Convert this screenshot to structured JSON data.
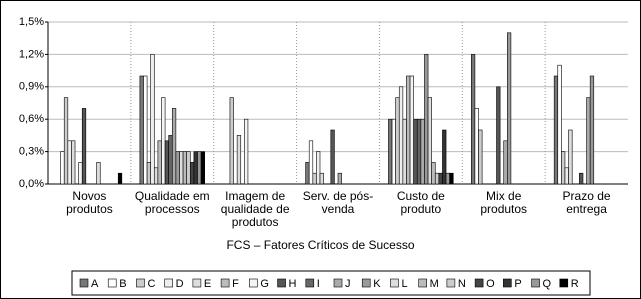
{
  "chart_data": {
    "type": "bar",
    "x_label": "FCS – Fatores Críticos de Sucesso",
    "categories": [
      "Novos produtos",
      "Qualidade em processos",
      "Imagem de qualidade de produtos",
      "Serv. de pós-venda",
      "Custo de produto",
      "Mix de produtos",
      "Prazo de entrega"
    ],
    "ylim": [
      0,
      1.5
    ],
    "yticks": [
      {
        "value": 0,
        "label": "0,0%"
      },
      {
        "value": 0.3,
        "label": "0,3%"
      },
      {
        "value": 0.6,
        "label": "0,6%"
      },
      {
        "value": 0.9,
        "label": "0,9%"
      },
      {
        "value": 1.2,
        "label": "1,2%"
      },
      {
        "value": 1.5,
        "label": "1,5%"
      }
    ],
    "grid": true,
    "legend": "bottom",
    "series": [
      {
        "name": "A",
        "color": "#777777",
        "values": [
          0,
          1.0,
          0,
          0.2,
          0.6,
          1.2,
          1.0
        ]
      },
      {
        "name": "B",
        "color": "#ffffff",
        "values": [
          0.3,
          1.0,
          0,
          0.4,
          0.6,
          0.7,
          1.1
        ]
      },
      {
        "name": "C",
        "color": "#cccccc",
        "values": [
          0.8,
          0.2,
          0.8,
          0.1,
          0.8,
          0.5,
          0.3
        ]
      },
      {
        "name": "D",
        "color": "#eeeeee",
        "values": [
          0.4,
          1.2,
          0,
          0.3,
          0.9,
          0,
          0.15
        ]
      },
      {
        "name": "E",
        "color": "#dddddd",
        "values": [
          0.4,
          0.15,
          0.45,
          0.1,
          0.6,
          0,
          0.5
        ]
      },
      {
        "name": "F",
        "color": "#bbbbbb",
        "values": [
          0,
          0.4,
          0,
          0,
          1.0,
          0,
          0
        ]
      },
      {
        "name": "G",
        "color": "#f4f4f4",
        "values": [
          0.2,
          0.8,
          0.6,
          0,
          1.0,
          0,
          0
        ]
      },
      {
        "name": "H",
        "color": "#555555",
        "values": [
          0.7,
          0.4,
          0,
          0.5,
          0.6,
          0.9,
          0.1
        ]
      },
      {
        "name": "I",
        "color": "#666666",
        "values": [
          0,
          0.45,
          0,
          0,
          0.6,
          0,
          0
        ]
      },
      {
        "name": "J",
        "color": "#aaaaaa",
        "values": [
          0,
          0.7,
          0,
          0.1,
          0.6,
          0.4,
          0.8
        ]
      },
      {
        "name": "K",
        "color": "#999999",
        "values": [
          0,
          0.3,
          0,
          0,
          1.2,
          1.4,
          1.0
        ]
      },
      {
        "name": "L",
        "color": "#dddddd",
        "values": [
          0.2,
          0.3,
          0,
          0,
          0.8,
          0,
          0
        ]
      },
      {
        "name": "M",
        "color": "#bbbbbb",
        "values": [
          0,
          0.3,
          0,
          0,
          0.2,
          0,
          0
        ]
      },
      {
        "name": "N",
        "color": "#cccccc",
        "values": [
          0,
          0.3,
          0,
          0,
          0.1,
          0,
          0
        ]
      },
      {
        "name": "O",
        "color": "#444444",
        "values": [
          0,
          0.2,
          0,
          0,
          0.1,
          0,
          0
        ]
      },
      {
        "name": "P",
        "color": "#333333",
        "values": [
          0,
          0.3,
          0,
          0,
          0.5,
          0,
          0
        ]
      },
      {
        "name": "Q",
        "color": "#999999",
        "values": [
          0,
          0.3,
          0,
          0,
          0.1,
          0,
          0
        ]
      },
      {
        "name": "R",
        "color": "#000000",
        "values": [
          0.1,
          0.3,
          0,
          0,
          0.1,
          0,
          0
        ]
      }
    ]
  }
}
